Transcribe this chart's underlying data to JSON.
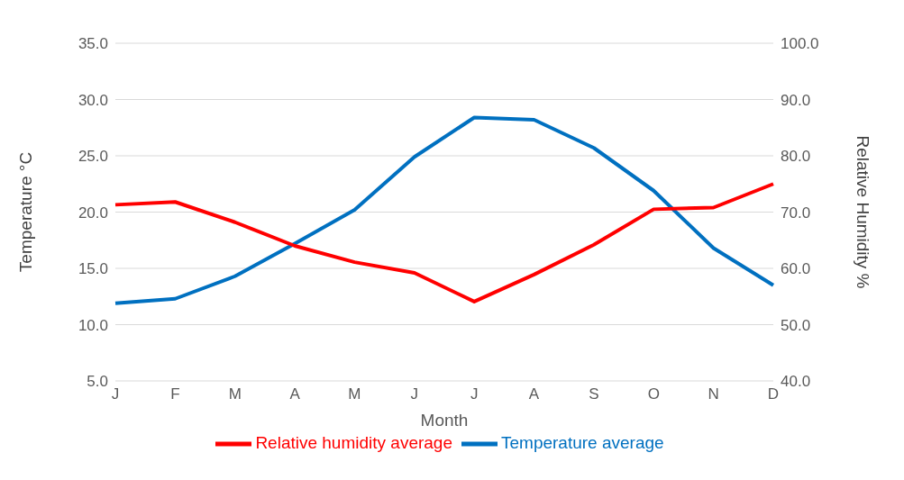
{
  "chart_data": {
    "type": "line",
    "xlabel": "Month",
    "ylabel": "Temperature °C",
    "y2label": "Relative Humidity %",
    "categories": [
      "J",
      "F",
      "M",
      "A",
      "M",
      "J",
      "J",
      "A",
      "S",
      "O",
      "N",
      "D"
    ],
    "series": [
      {
        "name": "Temperature average",
        "color": "#0070c0",
        "values": [
          11.9,
          12.3,
          14.3,
          17.2,
          20.2,
          24.9,
          28.4,
          28.2,
          25.7,
          21.9,
          16.8,
          13.5
        ]
      },
      {
        "name": "Relative humidity average",
        "color": "#ff0000",
        "axis": "y2",
        "values": [
          71.3,
          71.8,
          68.2,
          64.0,
          61.1,
          59.2,
          54.1,
          58.9,
          64.2,
          70.5,
          70.8,
          75.0
        ]
      }
    ],
    "ylim": [
      5,
      35
    ],
    "yticks": [
      {
        "value": 5,
        "label": "5.0"
      },
      {
        "value": 10,
        "label": "10.0"
      },
      {
        "value": 15,
        "label": "15.0"
      },
      {
        "value": 20,
        "label": "20.0"
      },
      {
        "value": 25,
        "label": "25.0"
      },
      {
        "value": 30,
        "label": "30.0"
      },
      {
        "value": 35,
        "label": "35.0"
      }
    ],
    "y2lim": [
      40,
      100
    ],
    "y2ticks": [
      {
        "value": 40,
        "label": "40.0"
      },
      {
        "value": 50,
        "label": "50.0"
      },
      {
        "value": 60,
        "label": "60.0"
      },
      {
        "value": 70,
        "label": "70.0"
      },
      {
        "value": 80,
        "label": "80.0"
      },
      {
        "value": 90,
        "label": "90.0"
      },
      {
        "value": 100,
        "label": "100.0"
      }
    ],
    "grid": "y",
    "legend": "bottom",
    "marker": "none",
    "line_style": "solid"
  }
}
